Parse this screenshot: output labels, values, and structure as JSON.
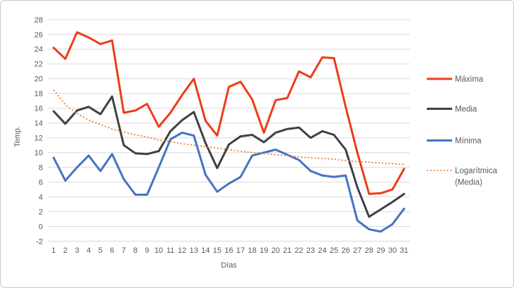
{
  "chart_data": {
    "type": "line",
    "title": "",
    "xlabel": "Días",
    "ylabel": "Temp.",
    "categories": [
      1,
      2,
      3,
      4,
      5,
      6,
      7,
      8,
      9,
      10,
      11,
      12,
      13,
      14,
      15,
      16,
      17,
      18,
      19,
      20,
      21,
      22,
      23,
      24,
      25,
      26,
      27,
      28,
      29,
      30,
      31
    ],
    "ylim": [
      -2,
      28
    ],
    "ytick_step": 2,
    "y_ticks": [
      28,
      26,
      24,
      22,
      20,
      18,
      16,
      14,
      12,
      10,
      8,
      6,
      4,
      2,
      0,
      -2
    ],
    "grid": true,
    "gridline_color": "#d9d9d9",
    "tick_label_color": "#595959",
    "legend_position": "right",
    "series": [
      {
        "name": "Máxima",
        "color": "#ef3b17",
        "style": "solid",
        "legend_lines": [
          "Máxima"
        ],
        "values": [
          24.2,
          22.7,
          26.3,
          25.6,
          24.7,
          25.2,
          15.4,
          15.7,
          16.6,
          13.5,
          15.4,
          17.8,
          20.0,
          14.3,
          12.3,
          18.9,
          19.6,
          17.2,
          12.7,
          17.1,
          17.4,
          21.0,
          20.2,
          22.9,
          22.8,
          16.2,
          10.0,
          4.4,
          4.5,
          5.0,
          7.8
        ]
      },
      {
        "name": "Media",
        "color": "#404040",
        "style": "solid",
        "legend_lines": [
          "Media"
        ],
        "values": [
          15.6,
          13.9,
          15.7,
          16.2,
          15.2,
          17.6,
          11.0,
          9.9,
          9.8,
          10.2,
          12.9,
          14.4,
          15.5,
          11.3,
          7.9,
          11.1,
          12.2,
          12.4,
          11.4,
          12.7,
          13.2,
          13.4,
          12.0,
          12.9,
          12.4,
          10.4,
          5.3,
          1.3,
          2.3,
          3.3,
          4.4
        ]
      },
      {
        "name": "Mínima",
        "color": "#4472c4",
        "style": "solid",
        "legend_lines": [
          "Mínima"
        ],
        "values": [
          9.3,
          6.2,
          8.0,
          9.6,
          7.5,
          9.8,
          6.4,
          4.3,
          4.3,
          8.0,
          11.8,
          12.7,
          12.3,
          7.0,
          4.7,
          5.8,
          6.7,
          9.6,
          10.0,
          10.4,
          9.7,
          9.0,
          7.5,
          6.9,
          6.7,
          6.9,
          0.8,
          -0.4,
          -0.7,
          0.3,
          2.4
        ]
      },
      {
        "name": "Logarítmica (Media)",
        "color": "#ed7d31",
        "style": "dotted",
        "legend_lines": [
          "Logarítmica",
          "(Media)"
        ],
        "values": [
          18.5,
          16.5,
          15.3,
          14.4,
          13.8,
          13.2,
          12.8,
          12.4,
          12.1,
          11.7,
          11.5,
          11.2,
          11.0,
          10.8,
          10.6,
          10.4,
          10.2,
          10.0,
          9.9,
          9.7,
          9.6,
          9.4,
          9.3,
          9.2,
          9.1,
          8.9,
          8.8,
          8.7,
          8.6,
          8.5,
          8.4
        ]
      }
    ]
  }
}
